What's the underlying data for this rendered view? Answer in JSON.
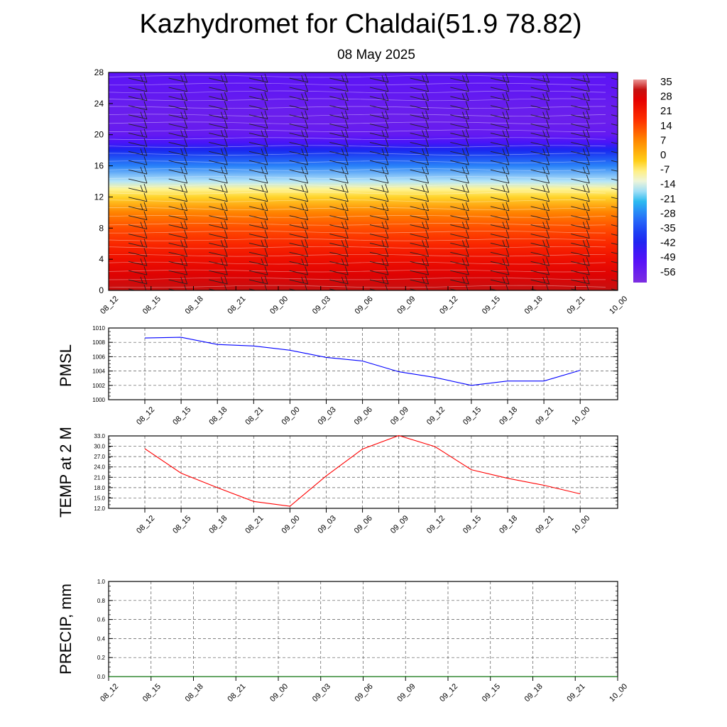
{
  "header": {
    "title": "Kazhydromet for Chaldai(51.9 78.82)",
    "subtitle": "08 May 2025"
  },
  "chart_data": [
    {
      "type": "heatmap",
      "title": "",
      "x_ticks": [
        "08_12",
        "08_15",
        "08_18",
        "08_21",
        "09_00",
        "09_03",
        "09_06",
        "09_09",
        "09_12",
        "09_15",
        "09_18",
        "09_21",
        "10_00"
      ],
      "y_ticks": [
        0,
        4,
        8,
        12,
        16,
        20,
        24,
        28
      ],
      "ylim": [
        0,
        28
      ],
      "colorbar_labels": [
        "35",
        "28",
        "21",
        "14",
        "7",
        "0",
        "-7",
        "-14",
        "-21",
        "-28",
        "-35",
        "-42",
        "-49",
        "-56"
      ],
      "colorbar_range": [
        -63,
        35
      ],
      "vertical_temperature_profile": [
        {
          "level": 0,
          "value": 30
        },
        {
          "level": 2,
          "value": 26
        },
        {
          "level": 4,
          "value": 22
        },
        {
          "level": 6,
          "value": 17
        },
        {
          "level": 8,
          "value": 12
        },
        {
          "level": 10,
          "value": 6
        },
        {
          "level": 12,
          "value": -5
        },
        {
          "level": 13,
          "value": -10
        },
        {
          "level": 14,
          "value": -18
        },
        {
          "level": 16,
          "value": -30
        },
        {
          "level": 18,
          "value": -42
        },
        {
          "level": 19,
          "value": -50
        },
        {
          "level": 20,
          "value": -56
        },
        {
          "level": 22,
          "value": -58
        },
        {
          "level": 24,
          "value": -57
        },
        {
          "level": 26,
          "value": -55
        },
        {
          "level": 28,
          "value": -54
        }
      ],
      "overlay": "wind barbs",
      "colors": {
        "frame": "#000000"
      }
    },
    {
      "type": "line",
      "ylabel": "PMSL",
      "categories": [
        "08_12",
        "08_15",
        "08_18",
        "08_21",
        "09_00",
        "09_03",
        "09_06",
        "09_09",
        "09_12",
        "09_15",
        "09_18",
        "09_21",
        "10_00"
      ],
      "series": [
        {
          "values": [
            1008.6,
            1008.7,
            1007.7,
            1007.5,
            1006.9,
            1005.9,
            1005.4,
            1003.9,
            1003.1,
            1002.0,
            1002.6,
            1002.6,
            1004.1
          ],
          "color": "#0000ff"
        }
      ],
      "ylim": [
        1000,
        1010
      ],
      "yticks": [
        "1000",
        "1002",
        "1004",
        "1006",
        "1008",
        "1010"
      ],
      "grid": true
    },
    {
      "type": "line",
      "ylabel": "TEMP at 2 M",
      "categories": [
        "08_12",
        "08_15",
        "08_18",
        "08_21",
        "09_00",
        "09_03",
        "09_06",
        "09_09",
        "09_12",
        "09_15",
        "09_18",
        "09_21",
        "10_00"
      ],
      "series": [
        {
          "values": [
            29.3,
            22.2,
            18.0,
            14.0,
            12.6,
            21.4,
            29.2,
            33.1,
            29.9,
            23.2,
            20.7,
            18.7,
            16.2
          ],
          "color": "#ff0000"
        }
      ],
      "ylim": [
        12,
        33
      ],
      "yticks": [
        "12.0",
        "15.0",
        "18.0",
        "21.0",
        "24.0",
        "27.0",
        "30.0",
        "33.0"
      ],
      "grid": true
    },
    {
      "type": "line",
      "ylabel": "PRECIP, mm",
      "categories": [
        "08_12",
        "08_15",
        "08_18",
        "08_21",
        "09_00",
        "09_03",
        "09_06",
        "09_09",
        "09_12",
        "09_15",
        "09_18",
        "09_21",
        "10_00"
      ],
      "series": [
        {
          "values": [
            0,
            0,
            0,
            0,
            0,
            0,
            0,
            0,
            0,
            0,
            0,
            0,
            0
          ],
          "color": "#008000"
        }
      ],
      "ylim": [
        0,
        1
      ],
      "yticks": [
        "0.0",
        "0.2",
        "0.4",
        "0.6",
        "0.8",
        "1.0"
      ],
      "grid": true
    }
  ]
}
